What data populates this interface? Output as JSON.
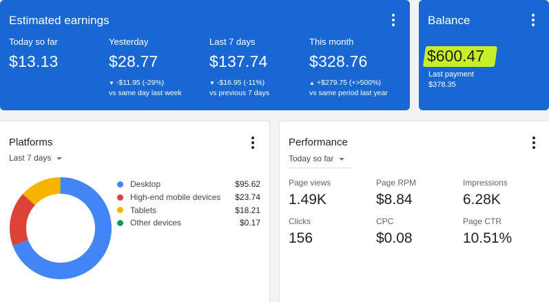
{
  "earnings": {
    "title": "Estimated earnings",
    "metrics": [
      {
        "label": "Today so far",
        "value": "$13.13"
      },
      {
        "label": "Yesterday",
        "value": "$28.77",
        "delta_arrow": "▼",
        "delta": "-$11.95 (-29%)",
        "compare": "vs same day last week"
      },
      {
        "label": "Last 7 days",
        "value": "$137.74",
        "delta_arrow": "▼",
        "delta": "-$16.95 (-11%)",
        "compare": "vs previous 7 days"
      },
      {
        "label": "This month",
        "value": "$328.76",
        "delta_arrow": "▲",
        "delta": "+$279.75 (+>500%)",
        "compare": "vs same period last year"
      }
    ]
  },
  "balance": {
    "title": "Balance",
    "value": "$600.47",
    "highlight_color": "#c8ee2a",
    "last_payment_label": "Last payment",
    "last_payment_value": "$378.35"
  },
  "platforms": {
    "title": "Platforms",
    "period": "Last 7 days",
    "items": [
      {
        "name": "Desktop",
        "amount": "$95.62",
        "color": "#4285f4"
      },
      {
        "name": "High-end mobile devices",
        "amount": "$23.74",
        "color": "#db4437"
      },
      {
        "name": "Tablets",
        "amount": "$18.21",
        "color": "#f4b400"
      },
      {
        "name": "Other devices",
        "amount": "$0.17",
        "color": "#0f9d58"
      }
    ]
  },
  "chart_data": {
    "type": "pie",
    "categories": [
      "Desktop",
      "High-end mobile devices",
      "Tablets",
      "Other devices"
    ],
    "values": [
      95.62,
      23.74,
      18.21,
      0.17
    ],
    "colors": [
      "#4285f4",
      "#db4437",
      "#f4b400",
      "#0f9d58"
    ],
    "style": "donut"
  },
  "performance": {
    "title": "Performance",
    "period": "Today so far",
    "metrics": [
      {
        "label": "Page views",
        "value": "1.49K"
      },
      {
        "label": "Page RPM",
        "value": "$8.84"
      },
      {
        "label": "Impressions",
        "value": "6.28K"
      },
      {
        "label": "Clicks",
        "value": "156"
      },
      {
        "label": "CPC",
        "value": "$0.08"
      },
      {
        "label": "Page CTR",
        "value": "10.51%"
      }
    ]
  },
  "icons": {
    "menu": "more-vert-icon",
    "dropdown": "caret-down-icon",
    "down": "triangle-down-icon",
    "up": "triangle-up-icon"
  },
  "colors": {
    "card_blue": "#1967d2",
    "background": "#f1f3f4"
  }
}
